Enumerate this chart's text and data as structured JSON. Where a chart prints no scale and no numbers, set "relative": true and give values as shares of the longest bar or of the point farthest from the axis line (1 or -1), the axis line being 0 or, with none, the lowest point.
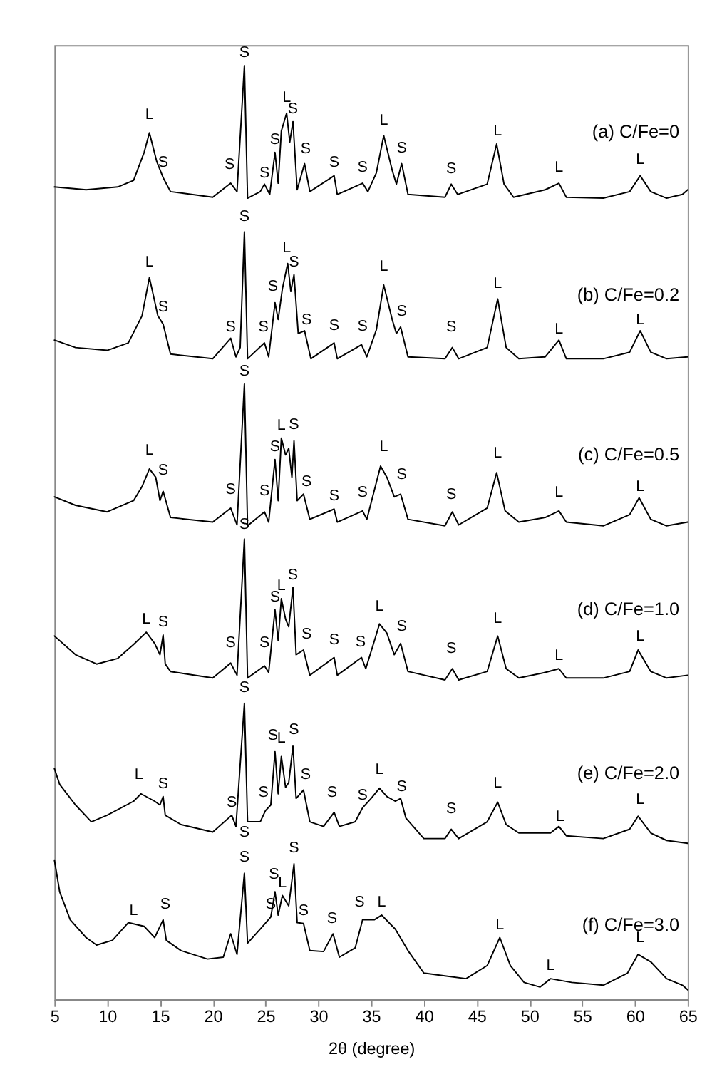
{
  "chart_data": {
    "type": "line",
    "relative": true,
    "xlabel": "2θ (degree)",
    "xlim": [
      5,
      65
    ],
    "xticks": [
      5,
      10,
      15,
      20,
      25,
      30,
      35,
      40,
      45,
      50,
      55,
      60,
      65
    ],
    "tick_labels": "x",
    "grid": false,
    "legend": false,
    "series": [
      {
        "name": "(a) C/Fe=0",
        "color": "#000000",
        "x": [
          5,
          8,
          11,
          12.5,
          13.5,
          14.0,
          14.7,
          15.3,
          16,
          20,
          21.7,
          22.3,
          23.0,
          23.3,
          24.5,
          24.9,
          25.4,
          25.9,
          26.2,
          26.5,
          27.0,
          27.3,
          27.6,
          28.0,
          28.7,
          29.2,
          31.5,
          31.8,
          34.2,
          34.7,
          35.5,
          36.2,
          37.0,
          37.4,
          37.9,
          38.5,
          42.0,
          42.6,
          43.2,
          46.0,
          46.9,
          47.6,
          48.5,
          51.5,
          52.8,
          53.5,
          57,
          59.5,
          60.5,
          61.5,
          63,
          64.5,
          65
        ],
        "values": [
          0.87,
          0.867,
          0.87,
          0.877,
          0.907,
          0.928,
          0.897,
          0.88,
          0.865,
          0.859,
          0.874,
          0.865,
          1.0,
          0.858,
          0.865,
          0.873,
          0.862,
          0.907,
          0.874,
          0.93,
          0.949,
          0.918,
          0.94,
          0.867,
          0.895,
          0.865,
          0.882,
          0.862,
          0.874,
          0.865,
          0.885,
          0.925,
          0.888,
          0.873,
          0.895,
          0.862,
          0.859,
          0.873,
          0.862,
          0.873,
          0.916,
          0.873,
          0.859,
          0.867,
          0.874,
          0.859,
          0.858,
          0.865,
          0.882,
          0.865,
          0.858,
          0.862,
          0.867
        ]
      },
      {
        "name": "(b) C/Fe=0.2",
        "color": "#000000",
        "x": [
          5,
          7,
          10,
          12,
          13.3,
          14.0,
          14.8,
          15.3,
          16,
          20,
          21.7,
          22.2,
          22.6,
          23.0,
          23.3,
          24.9,
          25.3,
          25.9,
          26.2,
          26.6,
          27.1,
          27.4,
          27.7,
          28.1,
          28.7,
          29.3,
          31.5,
          31.8,
          34.1,
          34.6,
          35.5,
          36.2,
          37.0,
          37.4,
          37.8,
          38.5,
          42.0,
          42.7,
          43.3,
          46.0,
          47.0,
          47.8,
          49,
          51.5,
          52.8,
          53.5,
          57,
          59.5,
          60.5,
          61.5,
          63,
          65
        ],
        "values": [
          0.706,
          0.698,
          0.695,
          0.703,
          0.732,
          0.773,
          0.732,
          0.723,
          0.691,
          0.686,
          0.708,
          0.688,
          0.698,
          0.822,
          0.686,
          0.703,
          0.688,
          0.746,
          0.728,
          0.761,
          0.788,
          0.758,
          0.776,
          0.713,
          0.716,
          0.686,
          0.703,
          0.686,
          0.701,
          0.688,
          0.717,
          0.765,
          0.728,
          0.713,
          0.72,
          0.688,
          0.686,
          0.698,
          0.686,
          0.698,
          0.75,
          0.698,
          0.686,
          0.688,
          0.706,
          0.686,
          0.686,
          0.693,
          0.716,
          0.693,
          0.686,
          0.688
        ]
      },
      {
        "name": "(c) C/Fe=0.5",
        "color": "#000000",
        "x": [
          5,
          7,
          10,
          12.5,
          13.3,
          14.0,
          14.6,
          15.0,
          15.3,
          16,
          20,
          21.7,
          22.3,
          23.0,
          23.3,
          24.9,
          25.3,
          25.9,
          26.2,
          26.5,
          26.9,
          27.2,
          27.5,
          27.7,
          28.0,
          28.6,
          29.2,
          31.5,
          31.8,
          34.2,
          34.6,
          35.4,
          35.9,
          36.5,
          37.2,
          37.8,
          38.5,
          42.0,
          42.7,
          43.3,
          46.0,
          46.9,
          47.7,
          49,
          51.5,
          52.8,
          53.5,
          57,
          59.5,
          60.4,
          61.5,
          63,
          65
        ],
        "values": [
          0.538,
          0.529,
          0.522,
          0.534,
          0.549,
          0.568,
          0.559,
          0.534,
          0.544,
          0.516,
          0.511,
          0.526,
          0.508,
          0.659,
          0.507,
          0.522,
          0.511,
          0.578,
          0.534,
          0.601,
          0.583,
          0.59,
          0.559,
          0.598,
          0.534,
          0.541,
          0.514,
          0.525,
          0.511,
          0.523,
          0.514,
          0.549,
          0.571,
          0.559,
          0.538,
          0.541,
          0.514,
          0.507,
          0.522,
          0.508,
          0.526,
          0.564,
          0.523,
          0.511,
          0.516,
          0.523,
          0.511,
          0.507,
          0.519,
          0.537,
          0.514,
          0.507,
          0.511
        ]
      },
      {
        "name": "(d) C/Fe=1.0",
        "color": "#000000",
        "x": [
          5,
          7,
          9,
          11,
          12.5,
          13.7,
          14.5,
          15.0,
          15.3,
          15.5,
          16,
          20,
          21.7,
          22.3,
          23.0,
          23.3,
          24.9,
          25.3,
          25.9,
          26.2,
          26.5,
          26.9,
          27.2,
          27.6,
          27.9,
          28.6,
          29.2,
          31.5,
          31.8,
          34.1,
          34.5,
          35.4,
          35.8,
          36.5,
          37.2,
          37.8,
          38.5,
          42.0,
          42.7,
          43.3,
          46.0,
          47.0,
          47.8,
          49,
          51.5,
          52.8,
          53.5,
          57,
          59.5,
          60.3,
          61.5,
          63,
          65
        ],
        "values": [
          0.389,
          0.369,
          0.359,
          0.365,
          0.38,
          0.393,
          0.381,
          0.369,
          0.39,
          0.359,
          0.351,
          0.344,
          0.36,
          0.347,
          0.493,
          0.344,
          0.357,
          0.35,
          0.417,
          0.384,
          0.429,
          0.407,
          0.399,
          0.441,
          0.369,
          0.374,
          0.347,
          0.366,
          0.347,
          0.366,
          0.354,
          0.387,
          0.402,
          0.392,
          0.369,
          0.381,
          0.351,
          0.342,
          0.354,
          0.342,
          0.351,
          0.389,
          0.354,
          0.344,
          0.35,
          0.354,
          0.344,
          0.344,
          0.351,
          0.374,
          0.351,
          0.344,
          0.347
        ]
      },
      {
        "name": "(e) C/Fe=2.0",
        "color": "#000000",
        "x": [
          5.0,
          5.5,
          7,
          8.5,
          10,
          12.5,
          13.2,
          14.5,
          15.0,
          15.3,
          15.5,
          17,
          20,
          21.8,
          22.2,
          23.0,
          23.3,
          24.5,
          25.0,
          25.5,
          25.9,
          26.2,
          26.5,
          26.9,
          27.2,
          27.6,
          27.9,
          28.6,
          29.2,
          30.5,
          31.5,
          32,
          33.5,
          34.2,
          35.0,
          35.8,
          36.5,
          37.3,
          37.8,
          38.3,
          40,
          42,
          42.6,
          43.3,
          46.0,
          47.0,
          47.8,
          49,
          52,
          52.8,
          53.5,
          57,
          59.5,
          60.3,
          61.5,
          63,
          65
        ],
        "values": [
          0.247,
          0.23,
          0.208,
          0.19,
          0.197,
          0.212,
          0.22,
          0.212,
          0.208,
          0.217,
          0.197,
          0.187,
          0.179,
          0.197,
          0.185,
          0.317,
          0.19,
          0.19,
          0.202,
          0.208,
          0.265,
          0.22,
          0.26,
          0.227,
          0.232,
          0.271,
          0.215,
          0.224,
          0.19,
          0.185,
          0.2,
          0.185,
          0.19,
          0.205,
          0.215,
          0.226,
          0.217,
          0.212,
          0.215,
          0.194,
          0.172,
          0.172,
          0.182,
          0.172,
          0.19,
          0.211,
          0.187,
          0.178,
          0.178,
          0.185,
          0.175,
          0.172,
          0.182,
          0.196,
          0.178,
          0.17,
          0.167
        ]
      },
      {
        "name": "(f) C/Fe=3.0",
        "color": "#000000",
        "x": [
          5.0,
          5.5,
          6.5,
          8,
          9,
          10.5,
          12.0,
          13.5,
          14.5,
          15.3,
          15.6,
          17,
          19.5,
          21.0,
          21.7,
          22.3,
          23.0,
          23.3,
          24.5,
          25.5,
          25.9,
          26.2,
          26.6,
          27.2,
          27.7,
          28.0,
          28.6,
          29.2,
          30.5,
          31.4,
          32,
          33.5,
          34.2,
          35.3,
          36.0,
          37.3,
          38.5,
          40,
          42,
          44,
          46.0,
          47.2,
          48.2,
          49.5,
          51,
          52,
          54,
          57,
          59.3,
          60.3,
          61.5,
          63,
          64.5,
          65
        ],
        "values": [
          0.149,
          0.115,
          0.085,
          0.066,
          0.058,
          0.063,
          0.082,
          0.078,
          0.066,
          0.085,
          0.063,
          0.052,
          0.043,
          0.045,
          0.07,
          0.048,
          0.135,
          0.06,
          0.075,
          0.088,
          0.115,
          0.09,
          0.111,
          0.1,
          0.145,
          0.082,
          0.081,
          0.052,
          0.051,
          0.07,
          0.045,
          0.055,
          0.085,
          0.085,
          0.09,
          0.075,
          0.052,
          0.028,
          0.025,
          0.022,
          0.036,
          0.066,
          0.036,
          0.018,
          0.013,
          0.022,
          0.018,
          0.015,
          0.028,
          0.048,
          0.04,
          0.022,
          0.015,
          0.01
        ]
      }
    ],
    "annotations": [
      {
        "text": "L",
        "x": 14.0,
        "y": 0.934
      },
      {
        "text": "S",
        "x": 15.3,
        "y": 0.883
      },
      {
        "text": "S",
        "x": 21.6,
        "y": 0.88
      },
      {
        "text": "S",
        "x": 23.0,
        "y": 1.0
      },
      {
        "text": "S",
        "x": 24.9,
        "y": 0.871
      },
      {
        "text": "S",
        "x": 25.9,
        "y": 0.907
      },
      {
        "text": "L",
        "x": 27.0,
        "y": 0.952
      },
      {
        "text": "S",
        "x": 27.6,
        "y": 0.94
      },
      {
        "text": "S",
        "x": 28.8,
        "y": 0.897
      },
      {
        "text": "S",
        "x": 31.5,
        "y": 0.883
      },
      {
        "text": "S",
        "x": 34.2,
        "y": 0.877
      },
      {
        "text": "L",
        "x": 36.2,
        "y": 0.928
      },
      {
        "text": "S",
        "x": 37.9,
        "y": 0.898
      },
      {
        "text": "S",
        "x": 42.6,
        "y": 0.876
      },
      {
        "text": "L",
        "x": 47.0,
        "y": 0.916
      },
      {
        "text": "L",
        "x": 52.8,
        "y": 0.877
      },
      {
        "text": "L",
        "x": 60.5,
        "y": 0.886
      },
      {
        "text": "L",
        "x": 14.0,
        "y": 0.776
      },
      {
        "text": "S",
        "x": 15.3,
        "y": 0.728
      },
      {
        "text": "S",
        "x": 21.7,
        "y": 0.706
      },
      {
        "text": "S",
        "x": 23.0,
        "y": 0.825
      },
      {
        "text": "S",
        "x": 24.8,
        "y": 0.706
      },
      {
        "text": "S",
        "x": 25.7,
        "y": 0.75
      },
      {
        "text": "L",
        "x": 27.0,
        "y": 0.791
      },
      {
        "text": "S",
        "x": 27.7,
        "y": 0.776
      },
      {
        "text": "S",
        "x": 28.9,
        "y": 0.714
      },
      {
        "text": "S",
        "x": 31.5,
        "y": 0.708
      },
      {
        "text": "S",
        "x": 34.2,
        "y": 0.707
      },
      {
        "text": "L",
        "x": 36.2,
        "y": 0.771
      },
      {
        "text": "S",
        "x": 37.9,
        "y": 0.723
      },
      {
        "text": "S",
        "x": 42.6,
        "y": 0.706
      },
      {
        "text": "L",
        "x": 47.0,
        "y": 0.753
      },
      {
        "text": "L",
        "x": 52.8,
        "y": 0.704
      },
      {
        "text": "L",
        "x": 60.5,
        "y": 0.714
      },
      {
        "text": "L",
        "x": 14.0,
        "y": 0.574
      },
      {
        "text": "S",
        "x": 15.3,
        "y": 0.553
      },
      {
        "text": "S",
        "x": 21.7,
        "y": 0.532
      },
      {
        "text": "S",
        "x": 23.0,
        "y": 0.659
      },
      {
        "text": "S",
        "x": 24.9,
        "y": 0.531
      },
      {
        "text": "S",
        "x": 25.9,
        "y": 0.578
      },
      {
        "text": "L",
        "x": 26.5,
        "y": 0.601
      },
      {
        "text": "S",
        "x": 27.7,
        "y": 0.602
      },
      {
        "text": "S",
        "x": 28.9,
        "y": 0.541
      },
      {
        "text": "S",
        "x": 31.5,
        "y": 0.525
      },
      {
        "text": "S",
        "x": 34.2,
        "y": 0.529
      },
      {
        "text": "L",
        "x": 36.2,
        "y": 0.578
      },
      {
        "text": "S",
        "x": 37.9,
        "y": 0.548
      },
      {
        "text": "S",
        "x": 42.6,
        "y": 0.527
      },
      {
        "text": "L",
        "x": 47.0,
        "y": 0.571
      },
      {
        "text": "L",
        "x": 52.8,
        "y": 0.529
      },
      {
        "text": "L",
        "x": 60.5,
        "y": 0.535
      },
      {
        "text": "L",
        "x": 13.7,
        "y": 0.393
      },
      {
        "text": "S",
        "x": 15.3,
        "y": 0.39
      },
      {
        "text": "S",
        "x": 21.7,
        "y": 0.368
      },
      {
        "text": "S",
        "x": 23.0,
        "y": 0.495
      },
      {
        "text": "S",
        "x": 24.9,
        "y": 0.368
      },
      {
        "text": "S",
        "x": 25.9,
        "y": 0.417
      },
      {
        "text": "L",
        "x": 26.5,
        "y": 0.429
      },
      {
        "text": "S",
        "x": 27.6,
        "y": 0.441
      },
      {
        "text": "S",
        "x": 28.9,
        "y": 0.377
      },
      {
        "text": "S",
        "x": 31.5,
        "y": 0.371
      },
      {
        "text": "S",
        "x": 34.0,
        "y": 0.369
      },
      {
        "text": "L",
        "x": 35.8,
        "y": 0.407
      },
      {
        "text": "S",
        "x": 37.9,
        "y": 0.386
      },
      {
        "text": "S",
        "x": 42.6,
        "y": 0.362
      },
      {
        "text": "L",
        "x": 47.0,
        "y": 0.394
      },
      {
        "text": "L",
        "x": 52.8,
        "y": 0.354
      },
      {
        "text": "L",
        "x": 60.5,
        "y": 0.375
      },
      {
        "text": "L",
        "x": 13.0,
        "y": 0.227
      },
      {
        "text": "S",
        "x": 15.3,
        "y": 0.217
      },
      {
        "text": "S",
        "x": 21.8,
        "y": 0.197
      },
      {
        "text": "S",
        "x": 23.0,
        "y": 0.32
      },
      {
        "text": "S",
        "x": 24.8,
        "y": 0.208
      },
      {
        "text": "S",
        "x": 25.7,
        "y": 0.269
      },
      {
        "text": "L",
        "x": 26.5,
        "y": 0.266
      },
      {
        "text": "S",
        "x": 27.7,
        "y": 0.275
      },
      {
        "text": "S",
        "x": 28.8,
        "y": 0.227
      },
      {
        "text": "S",
        "x": 31.3,
        "y": 0.208
      },
      {
        "text": "S",
        "x": 34.2,
        "y": 0.205
      },
      {
        "text": "L",
        "x": 35.8,
        "y": 0.232
      },
      {
        "text": "S",
        "x": 37.9,
        "y": 0.214
      },
      {
        "text": "S",
        "x": 42.6,
        "y": 0.19
      },
      {
        "text": "L",
        "x": 47.0,
        "y": 0.218
      },
      {
        "text": "L",
        "x": 52.9,
        "y": 0.182
      },
      {
        "text": "L",
        "x": 60.5,
        "y": 0.2
      },
      {
        "text": "S",
        "x": 23.0,
        "y": 0.138
      },
      {
        "text": "L",
        "x": 12.5,
        "y": 0.081
      },
      {
        "text": "S",
        "x": 15.5,
        "y": 0.088
      },
      {
        "text": "S",
        "x": 23.0,
        "y": 0.138
      },
      {
        "text": "S",
        "x": 25.5,
        "y": 0.088
      },
      {
        "text": "S",
        "x": 25.8,
        "y": 0.12
      },
      {
        "text": "L",
        "x": 26.6,
        "y": 0.111
      },
      {
        "text": "S",
        "x": 27.7,
        "y": 0.148
      },
      {
        "text": "S",
        "x": 28.6,
        "y": 0.081
      },
      {
        "text": "S",
        "x": 31.3,
        "y": 0.073
      },
      {
        "text": "S",
        "x": 33.9,
        "y": 0.09
      },
      {
        "text": "L",
        "x": 36.0,
        "y": 0.09
      },
      {
        "text": "L",
        "x": 47.2,
        "y": 0.066
      },
      {
        "text": "L",
        "x": 52.0,
        "y": 0.022
      },
      {
        "text": "L",
        "x": 60.5,
        "y": 0.052
      }
    ]
  }
}
